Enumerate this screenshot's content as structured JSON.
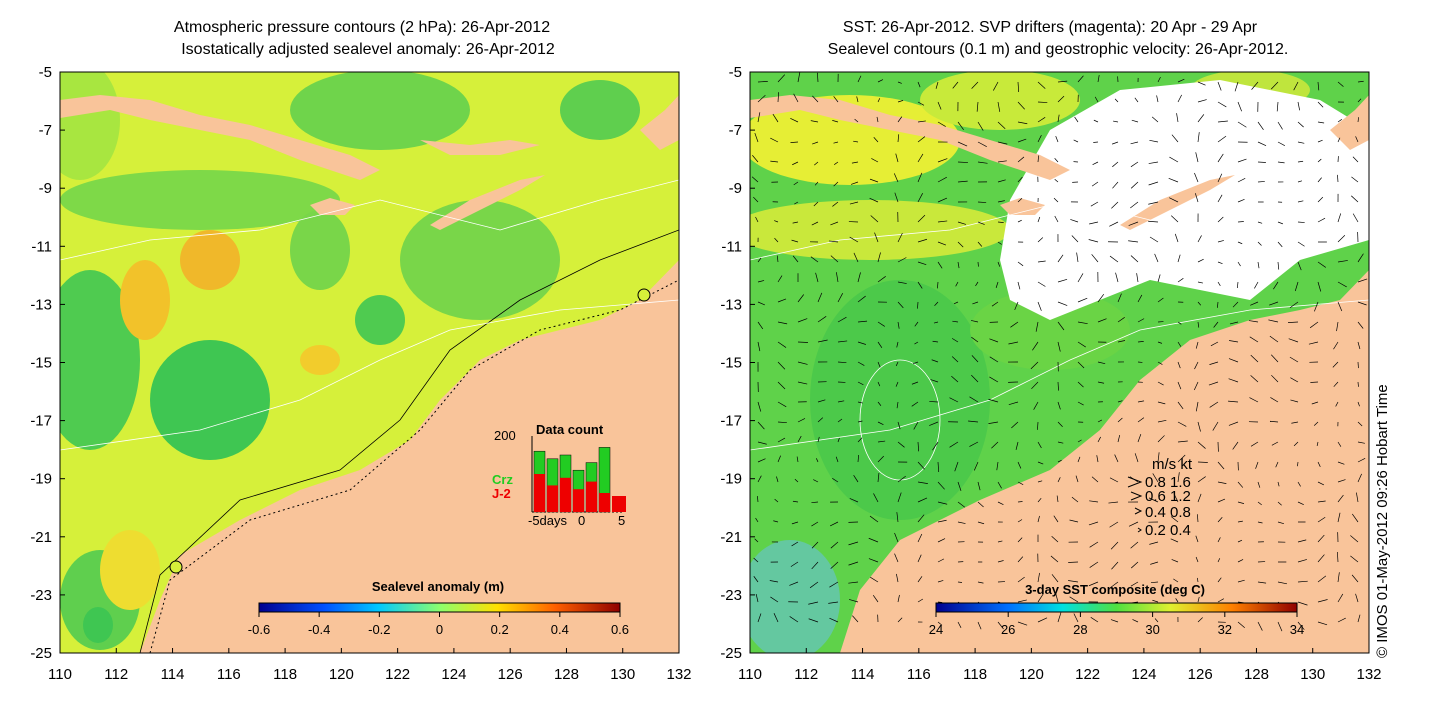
{
  "left_panel": {
    "title_line1": "Atmospheric pressure contours (2 hPa): 26-Apr-2012",
    "title_line2": "Isostatically adjusted sealevel anomaly: 26-Apr-2012",
    "x_ticks": [
      "110",
      "112",
      "114",
      "116",
      "118",
      "120",
      "122",
      "124",
      "126",
      "128",
      "130",
      "132"
    ],
    "y_ticks": [
      "-5",
      "-7",
      "-9",
      "-11",
      "-13",
      "-15",
      "-17",
      "-19",
      "-21",
      "-23",
      "-25"
    ],
    "colorbar": {
      "label": "Sealevel anomaly (m)",
      "ticks": [
        "-0.6",
        "-0.4",
        "-0.2",
        "0",
        "0.2",
        "0.4",
        "0.6"
      ]
    },
    "inset": {
      "title": "Data count",
      "y_max_label": "200",
      "x_labels": [
        "-5days",
        "0",
        "5"
      ],
      "series": [
        {
          "name": "Crz",
          "color": "#22cc22",
          "values": [
            160,
            140,
            150,
            110,
            130,
            170
          ]
        },
        {
          "name": "J-2",
          "color": "#ee0000",
          "values": [
            100,
            70,
            90,
            60,
            80,
            50
          ]
        }
      ]
    }
  },
  "right_panel": {
    "title_line1": "SST: 26-Apr-2012. SVP drifters (magenta): 20 Apr - 29 Apr",
    "title_line2": "Sealevel contours (0.1 m) and geostrophic velocity: 26-Apr-2012.",
    "x_ticks": [
      "110",
      "112",
      "114",
      "116",
      "118",
      "120",
      "122",
      "124",
      "126",
      "128",
      "130",
      "132"
    ],
    "y_ticks": [
      "-5",
      "-7",
      "-9",
      "-11",
      "-13",
      "-15",
      "-17",
      "-19",
      "-21",
      "-23",
      "-25"
    ],
    "colorbar": {
      "label": "3-day SST composite (deg C)",
      "ticks": [
        "24",
        "26",
        "28",
        "30",
        "32",
        "34"
      ]
    },
    "velocity_legend": {
      "header": "m/s  kt",
      "rows": [
        "0.8  1.6",
        "0.6  1.2",
        "0.4  0.8",
        "0.2  0.4"
      ]
    }
  },
  "credit": "© IMOS 01-May-2012 09:26 Hobart Time",
  "colors": {
    "land": "#f9c49a",
    "sea_yellow": "#d6f03a",
    "sea_green": "#5fd24a",
    "cloud": "#ffffff"
  }
}
